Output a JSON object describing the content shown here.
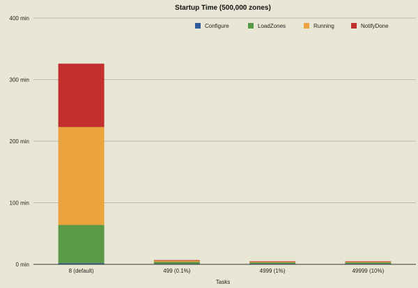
{
  "chart_data": {
    "type": "bar",
    "stacked": true,
    "title": "Startup Time (500,000 zones)",
    "xlabel": "Tasks",
    "ylabel": "",
    "categories": [
      "8 (default)",
      "499 (0.1%)",
      "4999 (1%)",
      "49999 (10%)"
    ],
    "series": [
      {
        "name": "Configure",
        "color": "#2d5b99",
        "values": [
          2,
          1,
          1,
          1
        ]
      },
      {
        "name": "LoadZones",
        "color": "#5a9a46",
        "values": [
          62,
          3,
          2,
          2
        ]
      },
      {
        "name": "Running",
        "color": "#eaa33f",
        "values": [
          159,
          2,
          1,
          1
        ]
      },
      {
        "name": "NotifyDone",
        "color": "#c1302f",
        "values": [
          103,
          1,
          1,
          1
        ]
      }
    ],
    "ylim": [
      0,
      400
    ],
    "yticks": [
      0,
      100,
      200,
      300,
      400
    ],
    "ytick_labels": [
      "0 min",
      "100 min",
      "200 min",
      "300 min",
      "400 min"
    ],
    "grid": true,
    "legend_position": "top-right",
    "colors": {
      "background": "#e8e6d4",
      "gridline": "#aaaaa0",
      "axis": "#333333"
    }
  }
}
